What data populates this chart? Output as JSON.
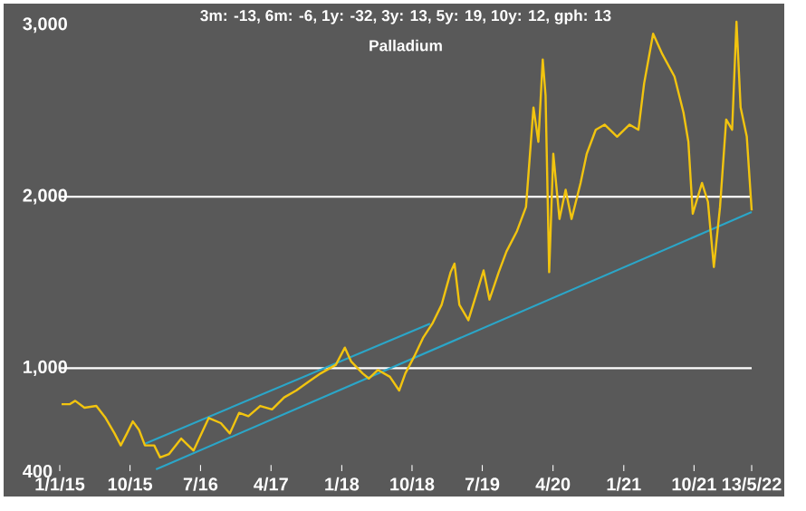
{
  "chart_data": {
    "type": "line",
    "title": "3m: -13,    6m: -6,    1y: -32,    3y: 13,    5y: 19,    10y: 12,    gph: 13",
    "subtitle": "Palladium",
    "xlim": [
      "2015-01-01",
      "2022-05-13"
    ],
    "xticks": [
      {
        "value": "2015-01-01",
        "label": "1/1/15"
      },
      {
        "value": "2015-10-01",
        "label": "10/15"
      },
      {
        "value": "2016-07-01",
        "label": "7/16"
      },
      {
        "value": "2017-04-01",
        "label": "4/17"
      },
      {
        "value": "2018-01-01",
        "label": "1/18"
      },
      {
        "value": "2018-10-01",
        "label": "10/18"
      },
      {
        "value": "2019-07-01",
        "label": "7/19"
      },
      {
        "value": "2020-04-01",
        "label": "4/20"
      },
      {
        "value": "2021-01-01",
        "label": "1/21"
      },
      {
        "value": "2021-10-01",
        "label": "10/21"
      },
      {
        "value": "2022-05-13",
        "label": "13/5/22"
      }
    ],
    "ylim": [
      400,
      3100
    ],
    "yticks": [
      400,
      {
        "value": 1000,
        "label": "1,000"
      },
      {
        "value": 2000,
        "label": "2,000"
      },
      {
        "value": 3000,
        "label": "3,000"
      }
    ],
    "ref_lines": [
      {
        "axis": "y",
        "value": 1000,
        "color": "#ffffff"
      },
      {
        "axis": "y",
        "value": 2000,
        "color": "#ffffff"
      }
    ],
    "grid": false,
    "marker": "none",
    "line_style": "solid",
    "series": [
      {
        "color": "#f2c40f",
        "x": [
          "2015-01-08",
          "2015-02-08",
          "2015-03-02",
          "2015-04-07",
          "2015-05-23",
          "2015-06-28",
          "2015-08-02",
          "2015-08-26",
          "2015-09-19",
          "2015-10-12",
          "2015-11-05",
          "2015-11-28",
          "2016-01-03",
          "2016-01-26",
          "2016-03-01",
          "2016-04-17",
          "2016-06-04",
          "2016-08-02",
          "2016-09-18",
          "2016-10-23",
          "2016-11-28",
          "2017-01-03",
          "2017-02-18",
          "2017-04-05",
          "2017-05-22",
          "2017-07-08",
          "2017-08-24",
          "2017-10-11",
          "2017-12-09",
          "2018-01-13",
          "2018-02-06",
          "2018-03-23",
          "2018-04-16",
          "2018-05-21",
          "2018-07-07",
          "2018-08-12",
          "2018-09-05",
          "2018-10-10",
          "2018-11-14",
          "2018-12-19",
          "2019-01-24",
          "2019-02-28",
          "2019-03-15",
          "2019-04-03",
          "2019-05-08",
          "2019-06-12",
          "2019-07-06",
          "2019-07-29",
          "2019-09-03",
          "2019-10-03",
          "2019-11-13",
          "2019-12-18",
          "2020-01-16",
          "2020-02-04",
          "2020-02-21",
          "2020-03-03",
          "2020-03-17",
          "2020-04-02",
          "2020-04-26",
          "2020-05-20",
          "2020-06-12",
          "2020-07-17",
          "2020-08-10",
          "2020-09-14",
          "2020-10-19",
          "2020-12-06",
          "2021-01-23",
          "2021-02-27",
          "2021-03-21",
          "2021-04-25",
          "2021-05-31",
          "2021-07-17",
          "2021-08-21",
          "2021-09-09",
          "2021-09-26",
          "2021-11-01",
          "2021-11-24",
          "2021-12-17",
          "2022-01-10",
          "2022-02-03",
          "2022-02-26",
          "2022-03-15",
          "2022-03-31",
          "2022-04-24",
          "2022-05-13"
        ],
        "values": [
          790,
          790,
          810,
          770,
          780,
          710,
          620,
          550,
          620,
          690,
          640,
          550,
          550,
          480,
          500,
          590,
          520,
          710,
          680,
          620,
          740,
          720,
          780,
          760,
          830,
          870,
          920,
          970,
          1020,
          1120,
          1040,
          970,
          940,
          990,
          950,
          870,
          970,
          1070,
          1180,
          1260,
          1370,
          1560,
          1610,
          1370,
          1280,
          1450,
          1570,
          1400,
          1560,
          1680,
          1800,
          1940,
          2520,
          2320,
          2800,
          2590,
          1560,
          2250,
          1870,
          2040,
          1870,
          2080,
          2250,
          2390,
          2420,
          2350,
          2420,
          2390,
          2660,
          2950,
          2830,
          2700,
          2490,
          2320,
          1900,
          2080,
          1970,
          1590,
          1940,
          2450,
          2390,
          3020,
          2520,
          2350,
          1920
        ]
      },
      {
        "color": "#2ba6c8",
        "x": [
          "2015-11-28",
          "2018-12-10"
        ],
        "values": [
          560,
          1260
        ]
      },
      {
        "color": "#2ba6c8",
        "x": [
          "2016-01-10",
          "2022-05-13"
        ],
        "values": [
          410,
          1910
        ]
      }
    ]
  }
}
